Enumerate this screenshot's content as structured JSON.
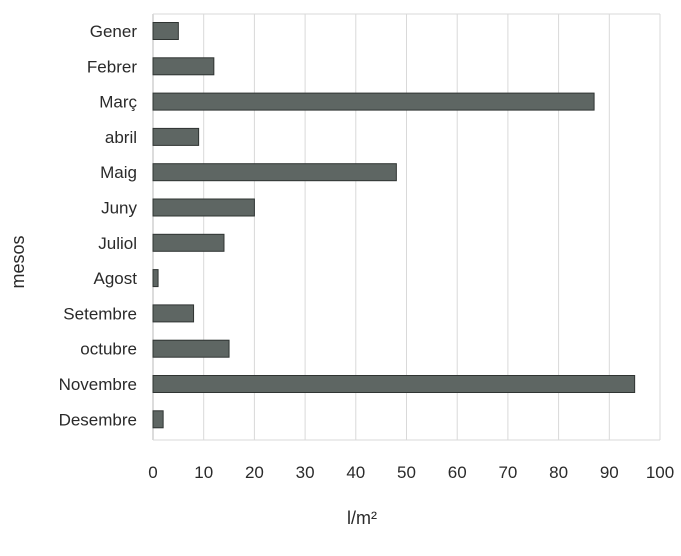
{
  "chart_data": {
    "type": "bar",
    "orientation": "horizontal",
    "categories": [
      "Gener",
      "Febrer",
      "Març",
      "abril",
      "Maig",
      "Juny",
      "Juliol",
      "Agost",
      "Setembre",
      "octubre",
      "Novembre",
      "Desembre"
    ],
    "values": [
      5,
      12,
      87,
      9,
      48,
      20,
      14,
      1,
      8,
      15,
      95,
      2
    ],
    "xlabel": "l/m²",
    "ylabel": "mesos",
    "xlim": [
      0,
      100
    ],
    "xticks": [
      0,
      10,
      20,
      30,
      40,
      50,
      60,
      70,
      80,
      90,
      100
    ],
    "grid": true,
    "legend": "none",
    "bar_color": "#5e6663"
  }
}
